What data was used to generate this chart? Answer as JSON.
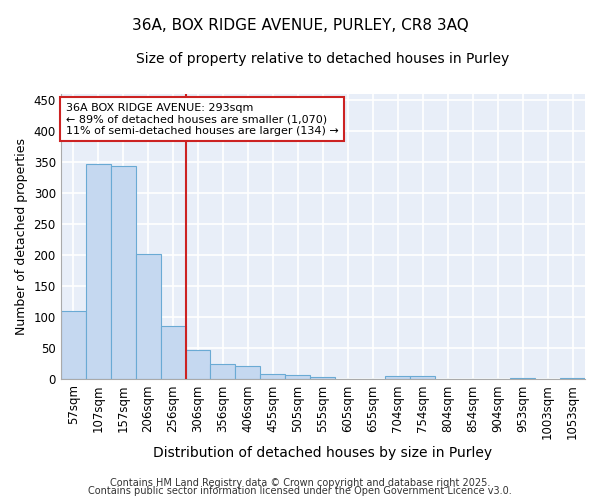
{
  "title1": "36A, BOX RIDGE AVENUE, PURLEY, CR8 3AQ",
  "title2": "Size of property relative to detached houses in Purley",
  "xlabel": "Distribution of detached houses by size in Purley",
  "ylabel": "Number of detached properties",
  "categories": [
    "57sqm",
    "107sqm",
    "157sqm",
    "206sqm",
    "256sqm",
    "306sqm",
    "356sqm",
    "406sqm",
    "455sqm",
    "505sqm",
    "555sqm",
    "605sqm",
    "655sqm",
    "704sqm",
    "754sqm",
    "804sqm",
    "854sqm",
    "904sqm",
    "953sqm",
    "1003sqm",
    "1053sqm"
  ],
  "values": [
    111,
    347,
    344,
    203,
    86,
    47,
    25,
    21,
    9,
    7,
    4,
    1,
    0,
    6,
    6,
    1,
    0,
    0,
    2,
    0,
    3
  ],
  "bar_color": "#c5d8f0",
  "bar_edge_color": "#6aaad4",
  "background_color": "#ffffff",
  "plot_bg_color": "#e8eef8",
  "grid_color": "#ffffff",
  "red_line_x": 4.5,
  "red_line_color": "#cc2222",
  "annotation_text": "36A BOX RIDGE AVENUE: 293sqm\n← 89% of detached houses are smaller (1,070)\n11% of semi-detached houses are larger (134) →",
  "annotation_box_facecolor": "#ffffff",
  "annotation_box_edgecolor": "#cc2222",
  "footer1": "Contains HM Land Registry data © Crown copyright and database right 2025.",
  "footer2": "Contains public sector information licensed under the Open Government Licence v3.0.",
  "ylim": [
    0,
    460
  ],
  "yticks": [
    0,
    50,
    100,
    150,
    200,
    250,
    300,
    350,
    400,
    450
  ],
  "title1_fontsize": 11,
  "title2_fontsize": 10,
  "xlabel_fontsize": 10,
  "ylabel_fontsize": 9,
  "tick_fontsize": 8.5,
  "footer_fontsize": 7
}
